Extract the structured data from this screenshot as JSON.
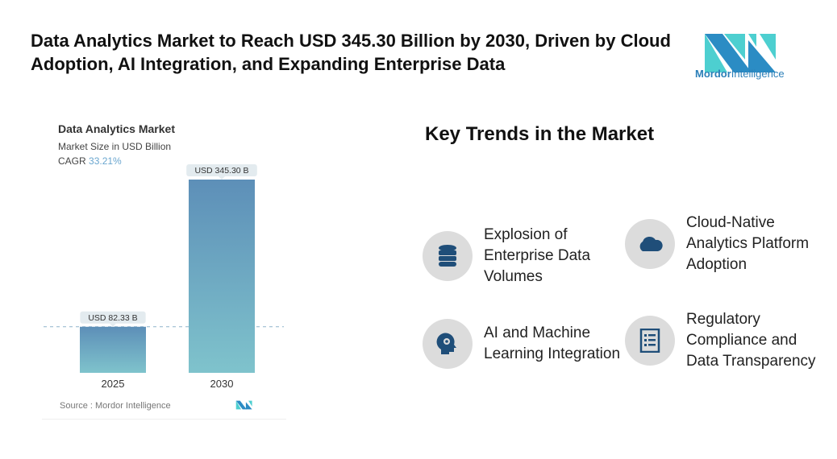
{
  "header": {
    "title": "Data Analytics Market to Reach USD 345.30 Billion by 2030, Driven by Cloud Adoption, AI Integration, and Expanding Enterprise Data"
  },
  "logo": {
    "name_bold": "Mordor",
    "name_rest": "Intelligence"
  },
  "chart_data": {
    "type": "bar",
    "title": "Data Analytics Market",
    "subtitle": "Market Size in USD Billion",
    "cagr_label": "CAGR",
    "cagr_value": "33.21%",
    "categories": [
      "2025",
      "2030"
    ],
    "values": [
      82.33,
      345.3
    ],
    "data_labels": [
      "USD 82.33 B",
      "USD 345.30 B"
    ],
    "ylim": [
      0,
      345.3
    ],
    "grid": false,
    "reference_line": "dashed at 2025 value",
    "source": "Source :  Mordor Intelligence",
    "colors": {
      "top": "#5d8fb8",
      "bottom": "#7fc3cc",
      "cagr": "#6aa6cf"
    }
  },
  "trends": {
    "title": "Key Trends in the Market",
    "items": [
      {
        "label": "Explosion of Enterprise Data Volumes",
        "icon": "database-icon"
      },
      {
        "label": "Cloud-Native Analytics Platform Adoption",
        "icon": "cloud-icon"
      },
      {
        "label": "AI and Machine Learning Integration",
        "icon": "ai-head-icon"
      },
      {
        "label": "Regulatory Compliance and Data Transparency",
        "icon": "checklist-icon"
      }
    ],
    "icon_color": "#1f4e79",
    "circle_color": "#dcdcdc"
  }
}
